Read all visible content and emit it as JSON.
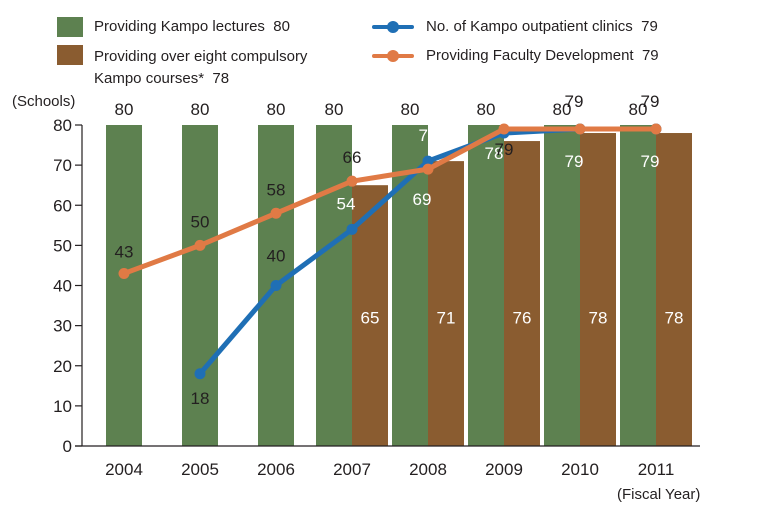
{
  "chart_data": {
    "type": "bar",
    "categories": [
      "2004",
      "2005",
      "2006",
      "2007",
      "2008",
      "2009",
      "2010",
      "2011"
    ],
    "ylim": [
      0,
      80
    ],
    "yticks": [
      "0",
      "10",
      "20",
      "30",
      "40",
      "50",
      "60",
      "70",
      "80"
    ],
    "ylabel": "(Schools)",
    "xlabel": "(Fiscal Year)",
    "grid": false,
    "legend_position": "top",
    "series": [
      {
        "name": "Providing Kampo lectures",
        "legend_value": "80",
        "kind": "bar",
        "color": "#5d8150",
        "values": [
          80,
          80,
          80,
          80,
          80,
          80,
          80,
          80
        ],
        "labels": [
          "80",
          "80",
          "80",
          "80",
          "80",
          "80",
          "80",
          "80"
        ]
      },
      {
        "name": "Providing over eight compulsory Kampo courses*",
        "name_line1": "Providing over eight compulsory",
        "name_line2": "Kampo courses*",
        "legend_value": "78",
        "kind": "bar",
        "color": "#8a5c30",
        "values": [
          null,
          null,
          null,
          65,
          71,
          76,
          78,
          78
        ],
        "labels": [
          "",
          "",
          "",
          "65",
          "71",
          "76",
          "78",
          "78"
        ]
      },
      {
        "name": "No. of Kampo outpatient clinics",
        "legend_value": "79",
        "kind": "line",
        "color": "#1f6fb5",
        "values": [
          null,
          18,
          40,
          54,
          71,
          78,
          79,
          79
        ],
        "labels": [
          "",
          "18",
          "40",
          "54",
          "71",
          "78",
          "79",
          "79"
        ]
      },
      {
        "name": "Providing Faculty Development",
        "legend_value": "79",
        "kind": "line",
        "color": "#e07a45",
        "values": [
          43,
          50,
          58,
          66,
          69,
          79,
          79,
          79
        ],
        "labels": [
          "43",
          "50",
          "58",
          "66",
          "69",
          "79",
          "79",
          "79"
        ]
      }
    ]
  }
}
